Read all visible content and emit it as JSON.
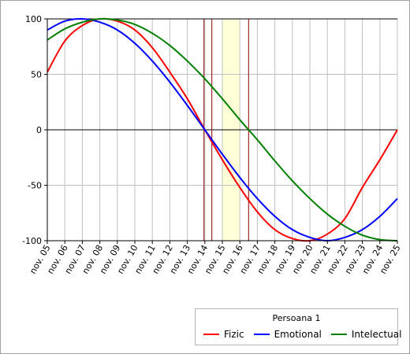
{
  "chart_data": {
    "type": "line",
    "title": "",
    "xlabel": "",
    "ylabel": "",
    "ylim": [
      -100,
      100
    ],
    "xlim": [
      0,
      20
    ],
    "y_ticks": [
      100,
      50,
      0,
      -50,
      -100
    ],
    "categories": [
      "nov. 05",
      "nov. 06",
      "nov. 07",
      "nov. 08",
      "nov. 09",
      "nov. 10",
      "nov. 11",
      "nov. 12",
      "nov. 13",
      "nov. 14",
      "nov. 15",
      "nov. 16",
      "nov. 17",
      "nov. 18",
      "nov. 19",
      "nov. 20",
      "nov. 21",
      "nov. 22",
      "nov. 23",
      "nov. 24",
      "nov. 25"
    ],
    "grid": true,
    "legend": {
      "title": "Persoana 1",
      "placement": "bottom-right"
    },
    "series": [
      {
        "name": "Fizic",
        "color": "#ff0000",
        "values": [
          52,
          80,
          94,
          100,
          98,
          90,
          74,
          52,
          28,
          0,
          -27,
          -52,
          -74,
          -90,
          -98,
          -100,
          -94,
          -80,
          -52,
          -27,
          0
        ]
      },
      {
        "name": "Emotional",
        "color": "#0000ff",
        "values": [
          90,
          98,
          100,
          97,
          90,
          78,
          62,
          43,
          22,
          0,
          -22,
          -43,
          -62,
          -78,
          -90,
          -97,
          -100,
          -97,
          -90,
          -78,
          -62
        ]
      },
      {
        "name": "Intelectual",
        "color": "#008000",
        "values": [
          81,
          91,
          97,
          100,
          99,
          95,
          87,
          76,
          62,
          46,
          28,
          9,
          -9,
          -28,
          -46,
          -62,
          -76,
          -87,
          -95,
          -99,
          -100
        ]
      }
    ],
    "vertical_markers": [
      {
        "x": 8.95,
        "color": "#8b0000"
      },
      {
        "x": 9.4,
        "color": "#8b0000"
      },
      {
        "x": 11.5,
        "color": "#8b0000"
      }
    ],
    "highlight_band": {
      "from": 10,
      "to": 11,
      "color": "#ffffd8"
    }
  }
}
